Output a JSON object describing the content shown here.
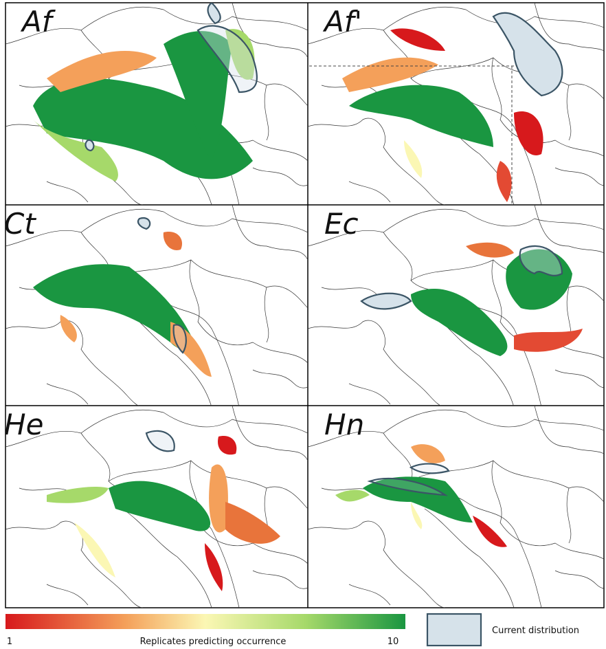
{
  "panels": [
    {
      "label": "Af"
    },
    {
      "label": "Af'"
    },
    {
      "label": "Ct"
    },
    {
      "label": "Ec"
    },
    {
      "label": "He"
    },
    {
      "label": "Hn"
    }
  ],
  "colorbar": {
    "min": 1,
    "max": 10,
    "label": "Replicates predicting occurrence"
  },
  "legend": {
    "label": "Current distribution"
  }
}
